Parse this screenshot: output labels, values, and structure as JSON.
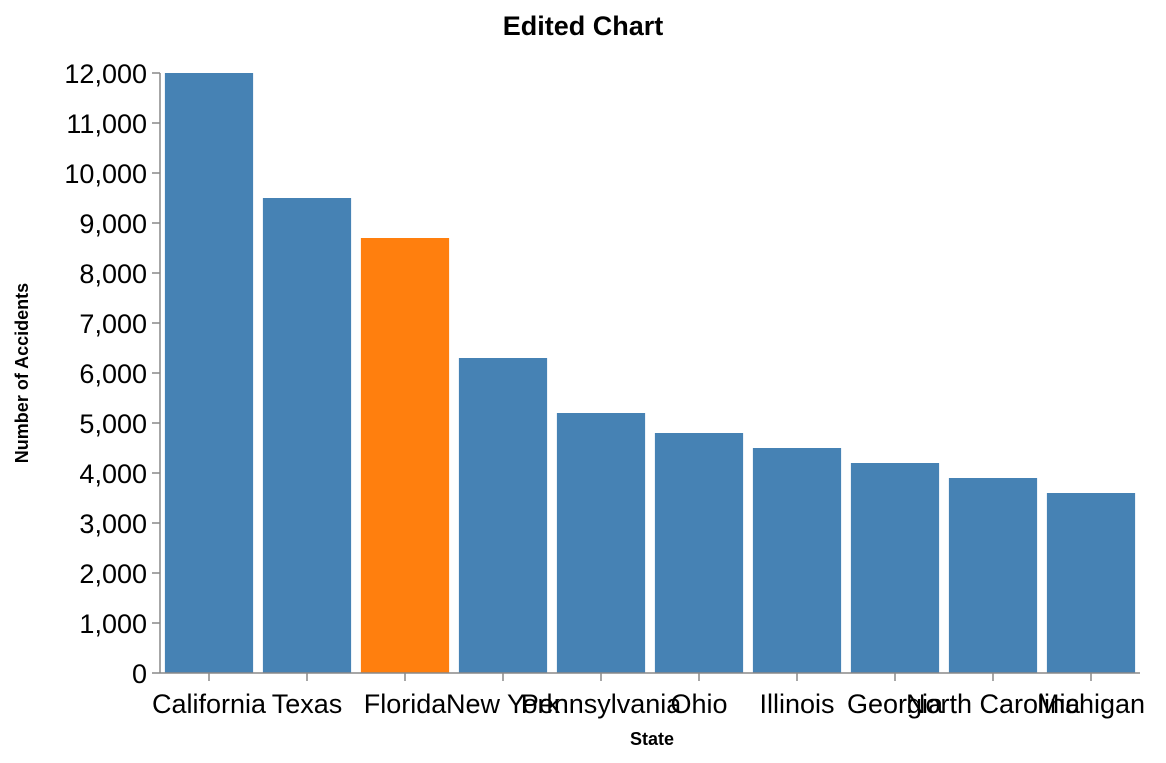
{
  "chart_data": {
    "type": "bar",
    "title": "Edited Chart",
    "xlabel": "State",
    "ylabel": "Number of Accidents",
    "categories": [
      "California",
      "Texas",
      "Florida",
      "New York",
      "Pennsylvania",
      "Ohio",
      "Illinois",
      "Georgia",
      "North Carolina",
      "Michigan"
    ],
    "values": [
      12000,
      9500,
      8700,
      6300,
      5200,
      4800,
      4500,
      4200,
      3900,
      3600
    ],
    "highlight": "Florida",
    "ylim": [
      0,
      12000
    ],
    "yticks": [
      0,
      1000,
      2000,
      3000,
      4000,
      5000,
      6000,
      7000,
      8000,
      9000,
      10000,
      11000,
      12000
    ],
    "ytick_labels": [
      "0",
      "1,000",
      "2,000",
      "3,000",
      "4,000",
      "5,000",
      "6,000",
      "7,000",
      "8,000",
      "9,000",
      "10,000",
      "11,000",
      "12,000"
    ],
    "grid": false,
    "legend": "none",
    "colors": {
      "bar": "#4682b4",
      "highlight": "#ff7f0e",
      "axis": "#888888"
    }
  }
}
